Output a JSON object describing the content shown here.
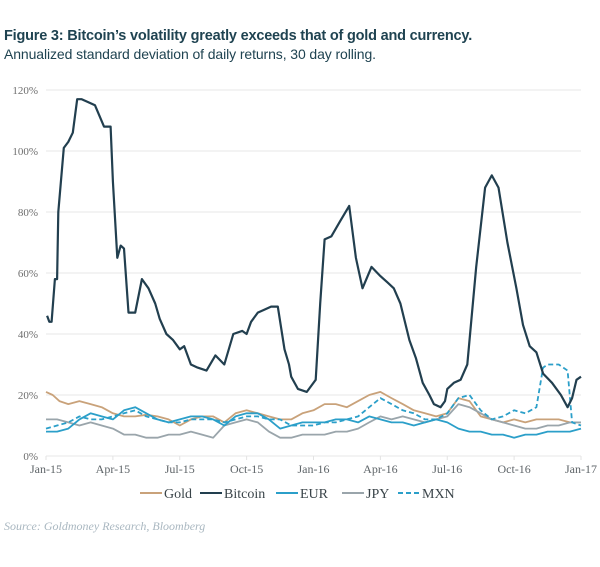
{
  "header": {
    "title": "Figure 3: Bitcoin’s volatility greatly exceeds that of gold and currency.",
    "subtitle": "Annualized standard deviation of daily returns, 30 day rolling."
  },
  "source": "Source: Goldmoney Research, Bloomberg",
  "chart_data": {
    "type": "line",
    "title": "Figure 3: Bitcoin’s volatility greatly exceeds that of gold and currency.",
    "subtitle": "Annualized standard deviation of daily returns, 30 day rolling.",
    "xlabel": "",
    "ylabel": "",
    "x_unit": "months since Jan-15",
    "xlim": [
      0,
      24
    ],
    "ylim": [
      0,
      120
    ],
    "y_ticks": [
      0,
      20,
      40,
      60,
      80,
      100,
      120
    ],
    "y_tick_labels": [
      "0%",
      "20%",
      "40%",
      "60%",
      "80%",
      "100%",
      "120%"
    ],
    "x_ticks": [
      0,
      3,
      6,
      9,
      12,
      15,
      18,
      21,
      24
    ],
    "x_tick_labels": [
      "Jan-15",
      "Apr-15",
      "Jul-15",
      "Oct-15",
      "Jan-16",
      "Apr-16",
      "Jul-16",
      "Oct-16",
      "Jan-17"
    ],
    "grid": "horizontal",
    "legend_position": "bottom",
    "series": [
      {
        "name": "Gold",
        "color": "#c9a27a",
        "dash": false,
        "x": [
          0,
          0.3,
          0.6,
          1.0,
          1.5,
          2.0,
          2.5,
          3.0,
          3.5,
          4.0,
          4.5,
          5.0,
          5.5,
          6.0,
          6.5,
          7.0,
          7.5,
          8.0,
          8.5,
          9.0,
          9.5,
          10.0,
          10.5,
          11.0,
          11.5,
          12.0,
          12.5,
          13.0,
          13.5,
          14.0,
          14.5,
          15.0,
          15.5,
          16.0,
          16.5,
          17.0,
          17.5,
          18.0,
          18.5,
          19.0,
          19.5,
          20.0,
          20.5,
          21.0,
          21.5,
          22.0,
          22.5,
          23.0,
          23.5,
          24.0
        ],
        "y": [
          21,
          20,
          18,
          17,
          18,
          17,
          16,
          14,
          13,
          13,
          13.5,
          13,
          12,
          10,
          12,
          13,
          13,
          11,
          14,
          15,
          14,
          13,
          12,
          12,
          14,
          15,
          17,
          17,
          16,
          18,
          20,
          21,
          19,
          17,
          15,
          14,
          13,
          14,
          19,
          18,
          13,
          12,
          11,
          12,
          11,
          12,
          12,
          12,
          11,
          11
        ]
      },
      {
        "name": "Bitcoin",
        "color": "#223f4f",
        "dash": false,
        "x": [
          0.05,
          0.15,
          0.25,
          0.4,
          0.5,
          0.55,
          0.8,
          1.0,
          1.2,
          1.4,
          1.6,
          1.9,
          2.2,
          2.6,
          2.9,
          3.0,
          3.2,
          3.35,
          3.5,
          3.7,
          4.0,
          4.3,
          4.6,
          4.9,
          5.1,
          5.4,
          5.7,
          6.0,
          6.2,
          6.5,
          6.8,
          7.2,
          7.6,
          8.0,
          8.4,
          8.8,
          9.0,
          9.2,
          9.5,
          9.8,
          10.1,
          10.4,
          10.7,
          10.9,
          11.0,
          11.3,
          11.7,
          12.1,
          12.3,
          12.5,
          12.8,
          13.2,
          13.6,
          13.9,
          14.2,
          14.6,
          15.0,
          15.3,
          15.6,
          15.9,
          16.3,
          16.6,
          16.9,
          17.2,
          17.4,
          17.7,
          17.9,
          18.0,
          18.3,
          18.6,
          18.9,
          19.3,
          19.7,
          20.0,
          20.3,
          20.7,
          21.1,
          21.4,
          21.7,
          22.0,
          22.3,
          22.7,
          23.1,
          23.4,
          23.6,
          23.8,
          24.0
        ],
        "y": [
          46,
          44,
          44,
          58,
          58,
          80,
          101,
          103,
          106,
          117,
          117,
          116,
          115,
          108,
          108,
          90,
          65,
          69,
          68,
          47,
          47,
          58,
          55,
          50,
          45,
          40,
          38,
          35,
          36,
          30,
          29,
          28,
          33,
          30,
          40,
          41,
          40,
          44,
          47,
          48,
          49,
          49,
          35,
          30,
          26,
          22,
          21,
          25,
          50,
          71,
          72,
          77,
          82,
          65,
          55,
          62,
          59,
          57,
          55,
          50,
          38,
          32,
          24,
          20,
          17,
          16,
          18,
          22,
          24,
          25,
          30,
          62,
          88,
          92,
          88,
          70,
          55,
          43,
          36,
          34,
          27,
          24,
          20,
          16,
          19,
          25,
          26
        ]
      },
      {
        "name": "EUR",
        "color": "#2b9fc9",
        "dash": false,
        "x": [
          0,
          0.5,
          1.0,
          1.5,
          2.0,
          2.5,
          3.0,
          3.5,
          4.0,
          4.5,
          5.0,
          5.5,
          6.0,
          6.5,
          7.0,
          7.5,
          8.0,
          8.5,
          9.0,
          9.5,
          10.0,
          10.5,
          11.0,
          11.5,
          12.0,
          12.5,
          13.0,
          13.5,
          14.0,
          14.5,
          15.0,
          15.5,
          16.0,
          16.5,
          17.0,
          17.5,
          18.0,
          18.5,
          19.0,
          19.5,
          20.0,
          20.5,
          21.0,
          21.5,
          22.0,
          22.5,
          23.0,
          23.5,
          24.0
        ],
        "y": [
          8,
          8,
          9,
          12,
          14,
          13,
          12,
          15,
          16,
          14,
          12,
          11,
          12,
          13,
          13,
          12,
          10,
          13,
          14,
          14,
          12,
          9,
          10,
          11,
          11,
          11,
          12,
          12,
          11,
          13,
          12,
          11,
          11,
          10,
          11,
          12,
          11,
          9,
          8,
          8,
          7,
          7,
          6,
          7,
          7,
          8,
          8,
          8,
          9
        ]
      },
      {
        "name": "JPY",
        "color": "#9aa5ab",
        "dash": false,
        "x": [
          0,
          0.5,
          1.0,
          1.5,
          2.0,
          2.5,
          3.0,
          3.5,
          4.0,
          4.5,
          5.0,
          5.5,
          6.0,
          6.5,
          7.0,
          7.5,
          8.0,
          8.5,
          9.0,
          9.5,
          10.0,
          10.5,
          11.0,
          11.5,
          12.0,
          12.5,
          13.0,
          13.5,
          14.0,
          14.5,
          15.0,
          15.5,
          16.0,
          16.5,
          17.0,
          17.5,
          18.0,
          18.5,
          19.0,
          19.5,
          20.0,
          20.5,
          21.0,
          21.5,
          22.0,
          22.5,
          23.0,
          23.5,
          24.0
        ],
        "y": [
          12,
          12,
          11,
          10,
          11,
          10,
          9,
          7,
          7,
          6,
          6,
          7,
          7,
          8,
          7,
          6,
          10,
          11,
          12,
          11,
          8,
          6,
          6,
          7,
          7,
          7,
          8,
          8,
          9,
          11,
          13,
          12,
          13,
          12,
          11,
          12,
          13,
          17,
          16,
          14,
          12,
          11,
          10,
          9,
          9,
          10,
          10,
          11,
          11
        ]
      },
      {
        "name": "MXN",
        "color": "#2b9fc9",
        "dash": true,
        "x": [
          0,
          0.5,
          1.0,
          1.5,
          2.0,
          2.5,
          3.0,
          3.5,
          4.0,
          4.5,
          5.0,
          5.5,
          6.0,
          6.5,
          7.0,
          7.5,
          8.0,
          8.5,
          9.0,
          9.5,
          10.0,
          10.5,
          11.0,
          11.5,
          12.0,
          12.5,
          13.0,
          13.5,
          14.0,
          14.5,
          15.0,
          15.5,
          16.0,
          16.5,
          17.0,
          17.5,
          18.0,
          18.5,
          19.0,
          19.5,
          20.0,
          20.5,
          21.0,
          21.5,
          22.0,
          22.3,
          22.5,
          23.0,
          23.4,
          23.6,
          24.0
        ],
        "y": [
          9,
          10,
          11,
          13,
          12,
          12,
          13,
          14,
          15,
          13,
          12,
          11,
          11,
          12,
          12,
          12,
          11,
          12,
          13,
          13,
          12,
          12,
          10,
          10,
          10,
          11,
          11,
          12,
          13,
          16,
          19,
          17,
          15,
          14,
          12,
          12,
          14,
          19,
          20,
          15,
          12,
          13,
          15,
          14,
          16,
          29,
          30,
          30,
          28,
          11,
          10
        ]
      }
    ]
  },
  "legend": [
    {
      "label": "Gold"
    },
    {
      "label": "Bitcoin"
    },
    {
      "label": "EUR"
    },
    {
      "label": "JPY"
    },
    {
      "label": "MXN"
    }
  ]
}
